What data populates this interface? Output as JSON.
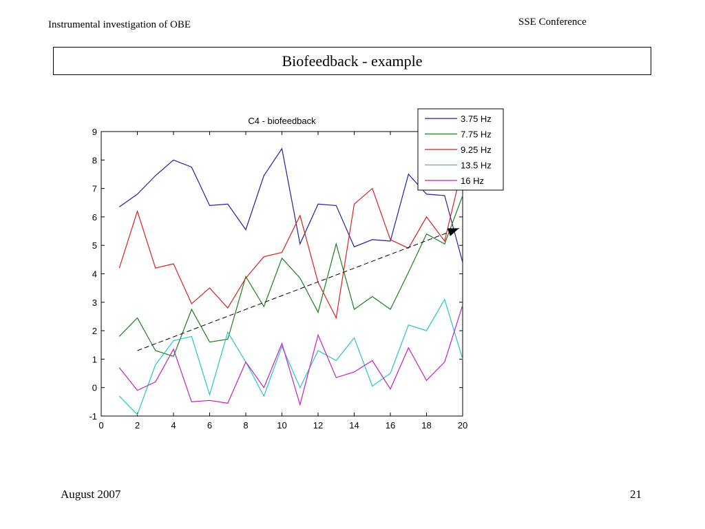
{
  "header": {
    "left": "Instrumental investigation of OBE",
    "right": "SSE Conference"
  },
  "slide": {
    "title": "Biofeedback - example"
  },
  "footer": {
    "date": "August 2007",
    "page": "21"
  },
  "chart_data": {
    "type": "line",
    "title": "C4 - biofeedback",
    "xlabel": "",
    "ylabel": "",
    "xlim": [
      0,
      20
    ],
    "ylim": [
      -1,
      9
    ],
    "xticks": [
      0,
      2,
      4,
      6,
      8,
      10,
      12,
      14,
      16,
      18,
      20
    ],
    "yticks": [
      -1,
      0,
      1,
      2,
      3,
      4,
      5,
      6,
      7,
      8,
      9
    ],
    "grid": false,
    "legend_position": "top-right",
    "x": [
      1,
      2,
      3,
      4,
      5,
      6,
      7,
      8,
      9,
      10,
      11,
      12,
      13,
      14,
      15,
      16,
      17,
      18,
      19,
      20
    ],
    "series": [
      {
        "name": "3.75 Hz",
        "color": "#1f1f9e",
        "values": [
          6.35,
          6.8,
          7.45,
          8.0,
          7.75,
          6.4,
          6.45,
          5.55,
          7.45,
          8.4,
          5.05,
          6.45,
          6.4,
          4.95,
          5.2,
          5.15,
          7.5,
          6.8,
          6.75,
          4.4
        ]
      },
      {
        "name": "7.75 Hz",
        "color": "#1a7f1a",
        "values": [
          1.8,
          2.45,
          1.3,
          1.1,
          2.75,
          1.6,
          1.7,
          3.9,
          2.85,
          4.55,
          3.85,
          2.65,
          5.05,
          2.75,
          3.2,
          2.75,
          4.05,
          5.4,
          5.05,
          6.75
        ]
      },
      {
        "name": "9.25 Hz",
        "color": "#d42020",
        "values": [
          4.2,
          6.2,
          4.2,
          4.35,
          2.95,
          3.5,
          2.8,
          3.85,
          4.6,
          4.75,
          6.05,
          3.7,
          2.45,
          6.45,
          7.0,
          5.2,
          4.9,
          6.0,
          5.15,
          7.8
        ]
      },
      {
        "name": "13.5 Hz",
        "color": "#27c4c4",
        "values": [
          -0.3,
          -0.95,
          0.8,
          1.65,
          1.8,
          -0.25,
          1.95,
          0.9,
          -0.3,
          1.45,
          0.0,
          1.3,
          0.95,
          1.75,
          0.05,
          0.5,
          2.2,
          2.0,
          3.1,
          1.0
        ]
      },
      {
        "name": "16 Hz",
        "color": "#c020c0",
        "values": [
          0.7,
          -0.1,
          0.2,
          1.35,
          -0.5,
          -0.45,
          -0.55,
          0.9,
          0.0,
          1.55,
          -0.6,
          1.85,
          0.35,
          0.55,
          0.95,
          -0.05,
          1.4,
          0.25,
          0.9,
          2.9
        ]
      }
    ],
    "trend_arrow": {
      "x": [
        2,
        19.8
      ],
      "y": [
        1.3,
        5.6
      ],
      "color": "#000000",
      "style": "dashed"
    }
  }
}
